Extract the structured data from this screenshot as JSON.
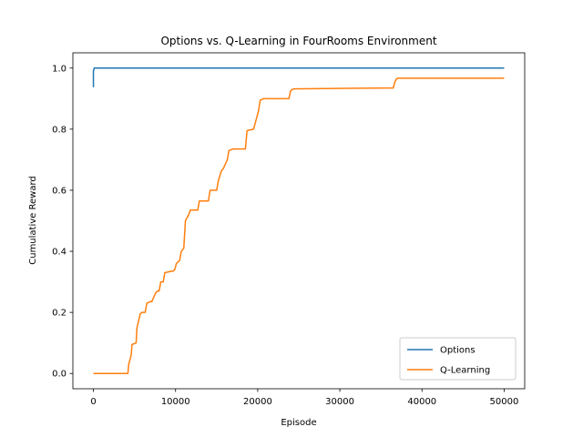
{
  "chart_data": {
    "type": "line",
    "title": "Options vs. Q-Learning in FourRooms Environment",
    "xlabel": "Episode",
    "ylabel": "Cumulative Reward",
    "xlim": [
      -2500,
      52500
    ],
    "ylim": [
      -0.05,
      1.05
    ],
    "xticks": [
      0,
      10000,
      20000,
      30000,
      40000,
      50000
    ],
    "xtick_labels": [
      "0",
      "10000",
      "20000",
      "30000",
      "40000",
      "50000"
    ],
    "yticks": [
      0.0,
      0.2,
      0.4,
      0.6,
      0.8,
      1.0
    ],
    "ytick_labels": [
      "0.0",
      "0.2",
      "0.4",
      "0.6",
      "0.8",
      "1.0"
    ],
    "grid": false,
    "legend_position": "lower-right",
    "series": [
      {
        "name": "Options",
        "color": "#1f77b4",
        "x": [
          0,
          0,
          100,
          50000
        ],
        "y": [
          0.937,
          0.99,
          1.0,
          1.0
        ]
      },
      {
        "name": "Q-Learning",
        "color": "#ff7f0e",
        "x": [
          0,
          4200,
          4300,
          4600,
          4700,
          5200,
          5300,
          5700,
          5900,
          6300,
          6500,
          6900,
          7100,
          7600,
          7800,
          8000,
          8200,
          8500,
          8700,
          9500,
          9700,
          9900,
          10100,
          10500,
          10700,
          11000,
          11200,
          11600,
          11800,
          12700,
          12900,
          14000,
          14200,
          15000,
          15200,
          15600,
          15800,
          16300,
          16500,
          17000,
          17200,
          18500,
          18700,
          19500,
          19700,
          20100,
          20300,
          20500,
          20700,
          23800,
          24000,
          24200,
          24400,
          36500,
          36700,
          36900,
          37100,
          50000
        ],
        "y": [
          0.0,
          0.0,
          0.03,
          0.06,
          0.095,
          0.1,
          0.15,
          0.195,
          0.2,
          0.2,
          0.23,
          0.235,
          0.235,
          0.265,
          0.27,
          0.27,
          0.3,
          0.3,
          0.33,
          0.335,
          0.335,
          0.34,
          0.36,
          0.37,
          0.4,
          0.41,
          0.5,
          0.52,
          0.535,
          0.535,
          0.565,
          0.565,
          0.6,
          0.6,
          0.63,
          0.665,
          0.67,
          0.7,
          0.73,
          0.735,
          0.735,
          0.735,
          0.795,
          0.8,
          0.82,
          0.86,
          0.895,
          0.897,
          0.9,
          0.9,
          0.925,
          0.93,
          0.932,
          0.935,
          0.955,
          0.965,
          0.967,
          0.967
        ]
      }
    ]
  }
}
